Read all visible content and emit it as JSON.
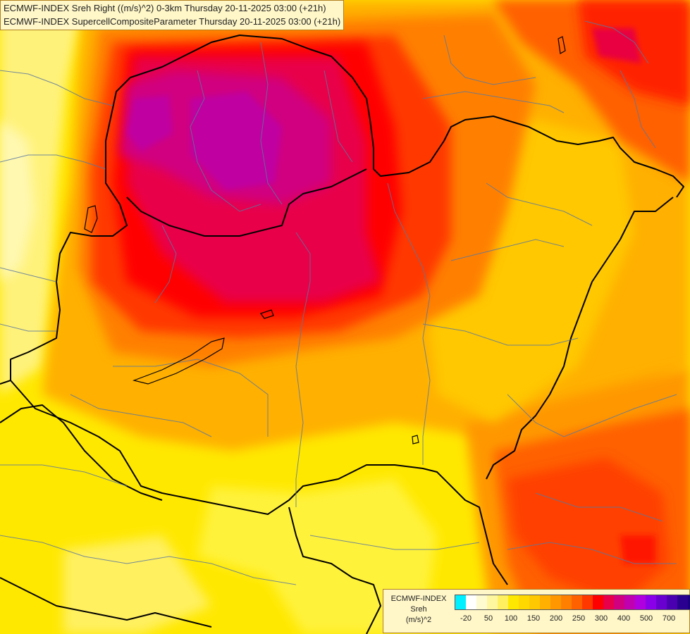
{
  "title": {
    "line1": "ECMWF-INDEX Sreh Right ((m/s)^2) 0-3km Thursday 20-11-2025 03:00 (+21h)",
    "line2": "ECMWF-INDEX SupercellCompositeParameter Thursday 20-11-2025 03:00 (+21h)"
  },
  "legend": {
    "line1": "ECMWF-INDEX",
    "line2": "Sreh",
    "line3": "(m/s)^2",
    "colors": [
      "#00f0ff",
      "#ffffff",
      "#fffbd0",
      "#fff7a0",
      "#fff060",
      "#ffe800",
      "#ffd800",
      "#ffc800",
      "#ffb000",
      "#ff9800",
      "#ff8000",
      "#ff6000",
      "#ff3800",
      "#ff0000",
      "#e8004a",
      "#d00080",
      "#c000b0",
      "#b000e0",
      "#8a00e8",
      "#6a00d0",
      "#4a00b0",
      "#2a0090",
      "#1a0080"
    ],
    "ticks": [
      "-20",
      "50",
      "100",
      "150",
      "200",
      "250",
      "300",
      "400",
      "500",
      "700"
    ]
  },
  "field": {
    "background": "#ffe800",
    "zones": [
      {
        "name": "west-pale",
        "color": "#fff07a"
      },
      {
        "name": "northwest-peak",
        "color": "#c8006e"
      },
      {
        "name": "central-red",
        "color": "#e8004a"
      },
      {
        "name": "northeast-red",
        "color": "#ff2000"
      },
      {
        "name": "southeast-red",
        "color": "#ff4000"
      }
    ]
  }
}
